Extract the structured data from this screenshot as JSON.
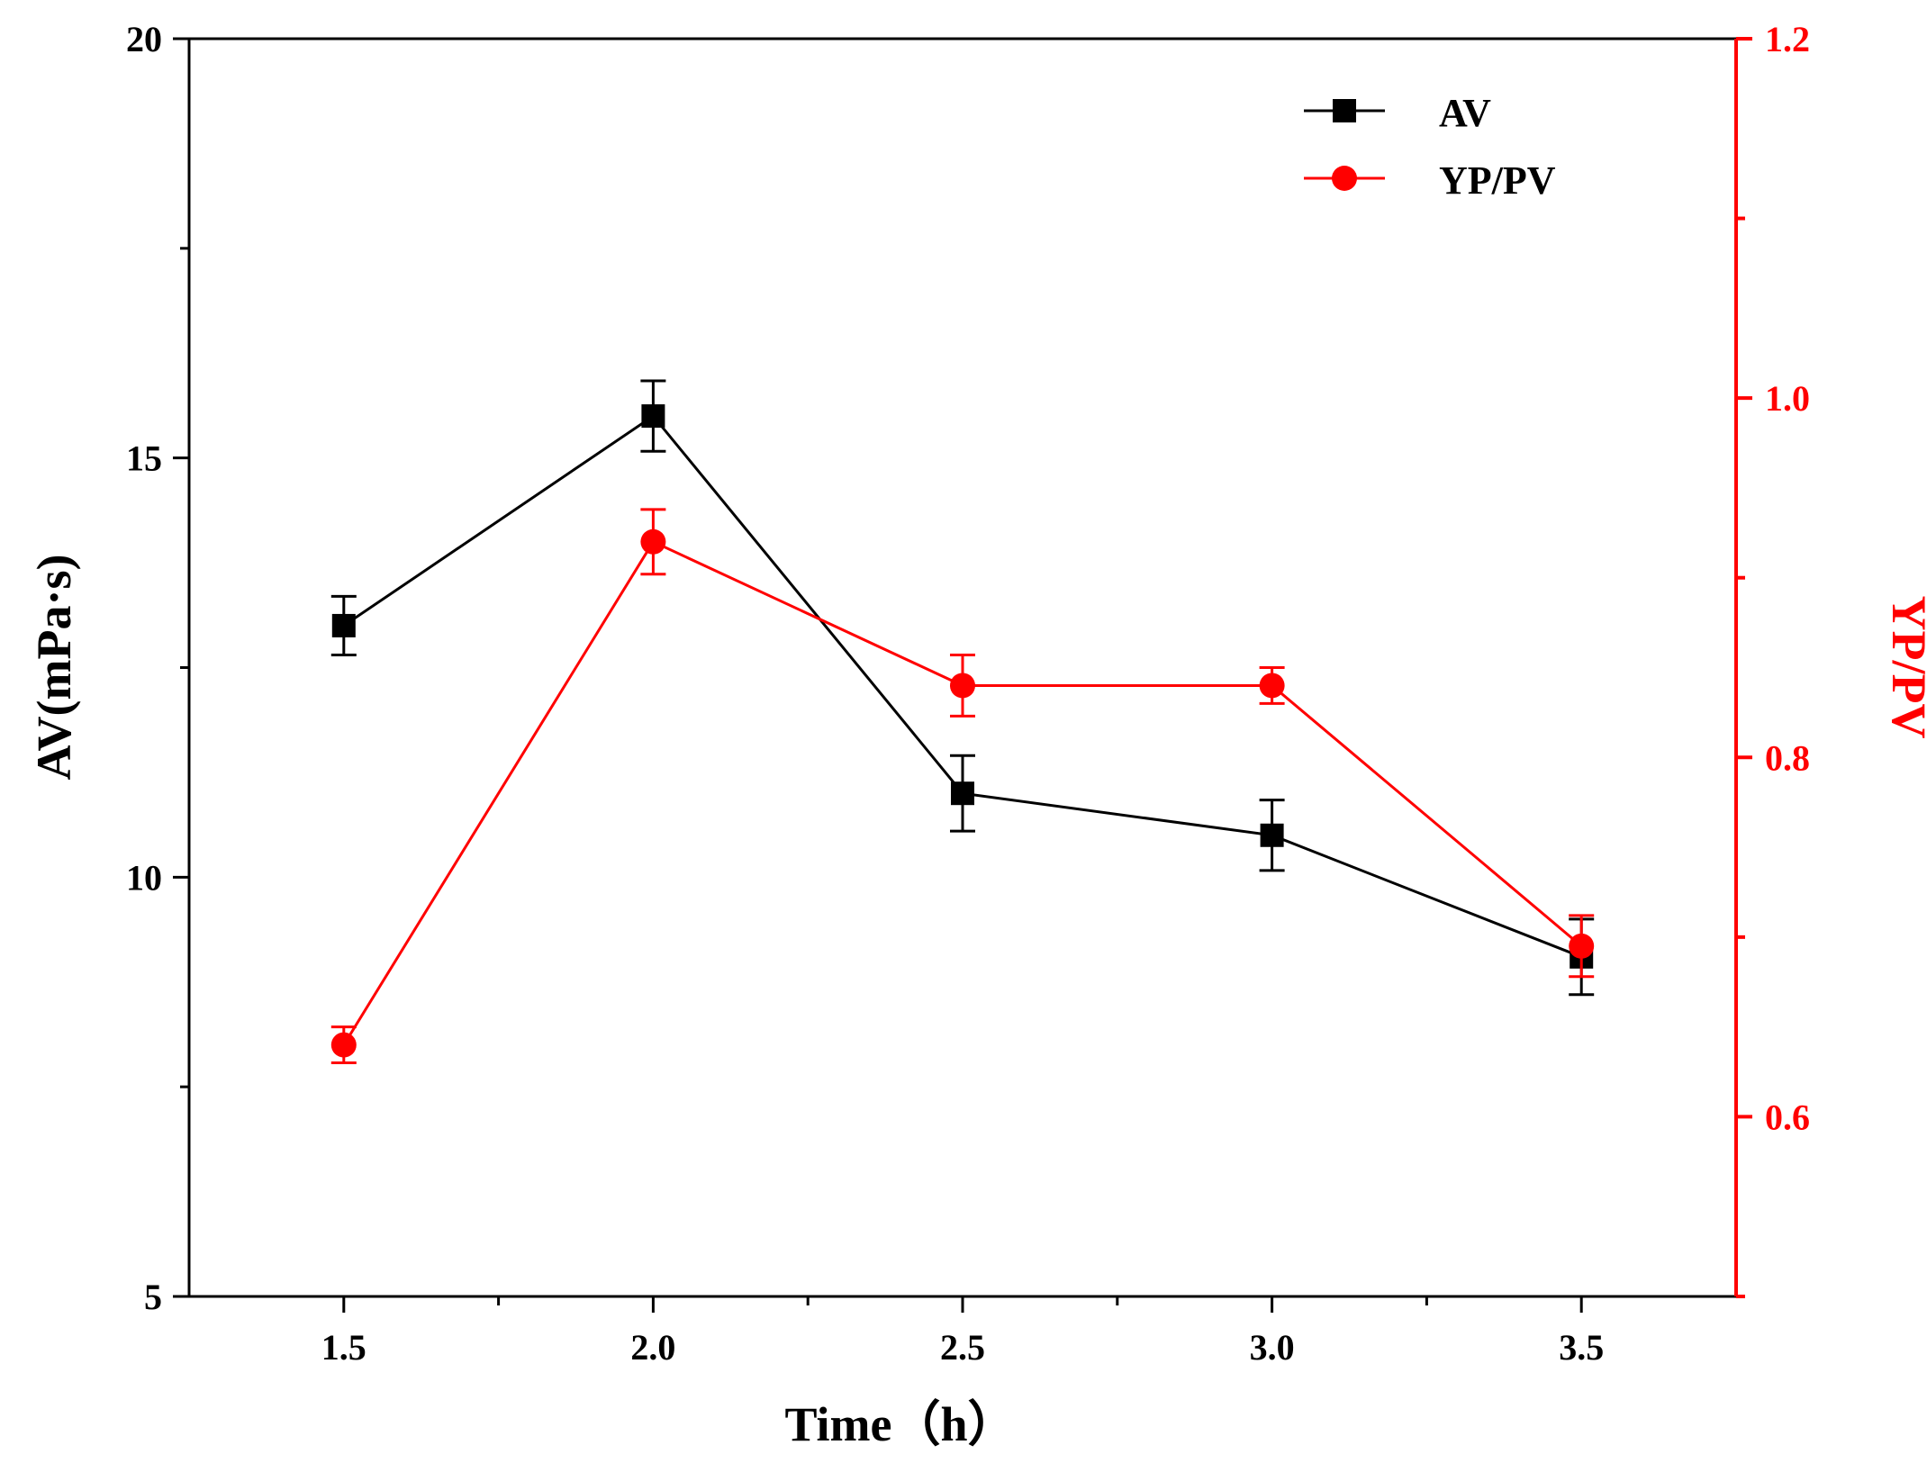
{
  "chart_data": {
    "type": "line",
    "x": [
      1.5,
      2.0,
      2.5,
      3.0,
      3.5
    ],
    "xlabel": "Time（h）",
    "ylabel": "AV(mPa·s)",
    "y2label": "YP/PV",
    "xlim": [
      1.25,
      3.75
    ],
    "ylim": [
      5,
      20
    ],
    "y2lim": [
      0.5,
      1.2
    ],
    "xticks": [
      "1.5",
      "2.0",
      "2.5",
      "3.0",
      "3.5"
    ],
    "yticks": [
      "5",
      "10",
      "15",
      "20"
    ],
    "y2ticks": [
      "0.6",
      "0.8",
      "1.0",
      "1.2"
    ],
    "legend_position": "top-right",
    "series": [
      {
        "name": "AV",
        "axis": "left",
        "color": "#000000",
        "marker": "square",
        "values": [
          13.0,
          15.5,
          11.0,
          10.5,
          9.05
        ],
        "errors": [
          0.35,
          0.42,
          0.45,
          0.42,
          0.45
        ]
      },
      {
        "name": "YP/PV",
        "axis": "right",
        "color": "#ff0000",
        "marker": "circle",
        "values": [
          0.64,
          0.92,
          0.84,
          0.84,
          0.695
        ],
        "errors": [
          0.01,
          0.018,
          0.017,
          0.01,
          0.017
        ]
      }
    ]
  }
}
